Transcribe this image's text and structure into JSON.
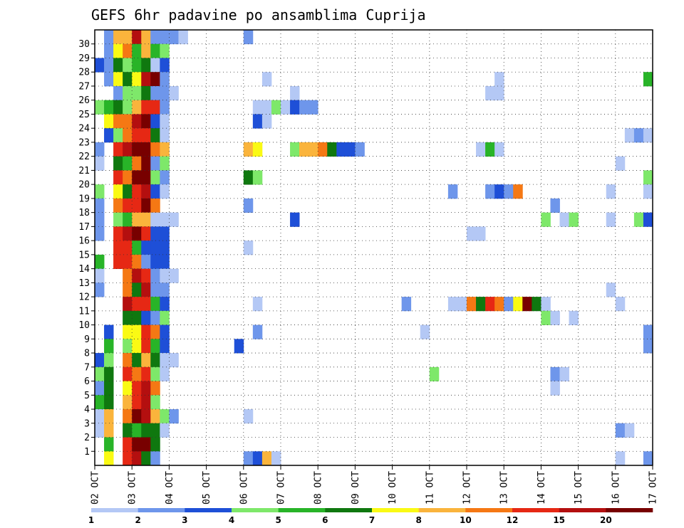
{
  "chart_data": {
    "type": "heatmap",
    "title": "GEFS 6hr padavine po ansamblima Cuprija",
    "y_ticks": [
      "1",
      "2",
      "3",
      "4",
      "5",
      "6",
      "7",
      "8",
      "9",
      "10",
      "11",
      "12",
      "13",
      "14",
      "15",
      "16",
      "17",
      "18",
      "19",
      "20",
      "21",
      "22",
      "23",
      "24",
      "25",
      "26",
      "27",
      "28",
      "29",
      "30"
    ],
    "x_ticks": [
      "02 OCT",
      "03 OCT",
      "04 OCT",
      "05 OCT",
      "06 OCT",
      "07 OCT",
      "08 OCT",
      "09 OCT",
      "10 OCT",
      "11 OCT",
      "12 OCT",
      "13 OCT",
      "14 OCT",
      "15 OCT",
      "16 OCT",
      "17 OCT"
    ],
    "grid": "dotted",
    "legend": {
      "placement": "bottom",
      "labels": [
        "1",
        "2",
        "3",
        "4",
        "5",
        "6",
        "7",
        "8",
        "10",
        "12",
        "15",
        "20"
      ],
      "colors": [
        "#b4c8f5",
        "#6e96eb",
        "#1e4fd7",
        "#7ee86a",
        "#28b428",
        "#0f780f",
        "#fafa14",
        "#fab43c",
        "#f57814",
        "#e62814",
        "#b40f0f",
        "#780000"
      ]
    },
    "x_steps_per_day": 4,
    "n_members": 31,
    "member_index_note": "rows ordered bottom (member 0) to top (member 30)",
    "level_thresholds_mm": [
      1,
      2,
      3,
      4,
      5,
      6,
      7,
      8,
      10,
      12,
      15,
      20
    ],
    "cells": [
      [
        30,
        1,
        2
      ],
      [
        30,
        2,
        8
      ],
      [
        30,
        3,
        8
      ],
      [
        30,
        4,
        11
      ],
      [
        30,
        5,
        8
      ],
      [
        30,
        6,
        2
      ],
      [
        30,
        7,
        2
      ],
      [
        30,
        8,
        2
      ],
      [
        30,
        9,
        1
      ],
      [
        30,
        16,
        2
      ],
      [
        29,
        1,
        2
      ],
      [
        29,
        2,
        7
      ],
      [
        29,
        3,
        9
      ],
      [
        29,
        4,
        5
      ],
      [
        29,
        5,
        8
      ],
      [
        29,
        6,
        5
      ],
      [
        29,
        7,
        4
      ],
      [
        28,
        0,
        3
      ],
      [
        28,
        1,
        2
      ],
      [
        28,
        2,
        6
      ],
      [
        28,
        3,
        4
      ],
      [
        28,
        4,
        5
      ],
      [
        28,
        5,
        6
      ],
      [
        28,
        6,
        1
      ],
      [
        28,
        7,
        3
      ],
      [
        27,
        1,
        2
      ],
      [
        27,
        2,
        7
      ],
      [
        27,
        3,
        6
      ],
      [
        27,
        4,
        7
      ],
      [
        27,
        5,
        11
      ],
      [
        27,
        6,
        12
      ],
      [
        27,
        7,
        2
      ],
      [
        27,
        18,
        1
      ],
      [
        27,
        43,
        1
      ],
      [
        27,
        59,
        5
      ],
      [
        26,
        2,
        2
      ],
      [
        26,
        3,
        4
      ],
      [
        26,
        4,
        4
      ],
      [
        26,
        5,
        6
      ],
      [
        26,
        6,
        2
      ],
      [
        26,
        7,
        2
      ],
      [
        26,
        8,
        1
      ],
      [
        26,
        21,
        1
      ],
      [
        26,
        42,
        1
      ],
      [
        26,
        43,
        1
      ],
      [
        25,
        0,
        4
      ],
      [
        25,
        1,
        5
      ],
      [
        25,
        2,
        6
      ],
      [
        25,
        3,
        4
      ],
      [
        25,
        4,
        8
      ],
      [
        25,
        5,
        10
      ],
      [
        25,
        6,
        10
      ],
      [
        25,
        7,
        2
      ],
      [
        25,
        17,
        1
      ],
      [
        25,
        18,
        1
      ],
      [
        25,
        19,
        4
      ],
      [
        25,
        20,
        1
      ],
      [
        25,
        21,
        3
      ],
      [
        25,
        22,
        2
      ],
      [
        25,
        23,
        2
      ],
      [
        24,
        1,
        7
      ],
      [
        24,
        2,
        9
      ],
      [
        24,
        3,
        9
      ],
      [
        24,
        4,
        11
      ],
      [
        24,
        5,
        12
      ],
      [
        24,
        6,
        3
      ],
      [
        24,
        7,
        1
      ],
      [
        24,
        17,
        3
      ],
      [
        24,
        18,
        1
      ],
      [
        23,
        1,
        3
      ],
      [
        23,
        2,
        4
      ],
      [
        23,
        3,
        9
      ],
      [
        23,
        4,
        10
      ],
      [
        23,
        5,
        10
      ],
      [
        23,
        6,
        6
      ],
      [
        23,
        7,
        1
      ],
      [
        23,
        57,
        1
      ],
      [
        23,
        58,
        2
      ],
      [
        23,
        59,
        1
      ],
      [
        22,
        0,
        2
      ],
      [
        22,
        2,
        10
      ],
      [
        22,
        3,
        11
      ],
      [
        22,
        4,
        12
      ],
      [
        22,
        5,
        12
      ],
      [
        22,
        6,
        9
      ],
      [
        22,
        7,
        8
      ],
      [
        22,
        16,
        8
      ],
      [
        22,
        17,
        7
      ],
      [
        22,
        21,
        4
      ],
      [
        22,
        22,
        8
      ],
      [
        22,
        23,
        8
      ],
      [
        22,
        24,
        9
      ],
      [
        22,
        25,
        6
      ],
      [
        22,
        26,
        3
      ],
      [
        22,
        27,
        3
      ],
      [
        22,
        28,
        2
      ],
      [
        22,
        41,
        1
      ],
      [
        22,
        42,
        5
      ],
      [
        22,
        43,
        1
      ],
      [
        21,
        0,
        1
      ],
      [
        21,
        2,
        6
      ],
      [
        21,
        3,
        5
      ],
      [
        21,
        4,
        9
      ],
      [
        21,
        5,
        12
      ],
      [
        21,
        6,
        2
      ],
      [
        21,
        7,
        4
      ],
      [
        21,
        56,
        1
      ],
      [
        20,
        2,
        10
      ],
      [
        20,
        3,
        9
      ],
      [
        20,
        4,
        12
      ],
      [
        20,
        5,
        12
      ],
      [
        20,
        6,
        4
      ],
      [
        20,
        7,
        2
      ],
      [
        20,
        16,
        6
      ],
      [
        20,
        17,
        4
      ],
      [
        20,
        59,
        4
      ],
      [
        19,
        0,
        4
      ],
      [
        19,
        2,
        7
      ],
      [
        19,
        3,
        6
      ],
      [
        19,
        4,
        10
      ],
      [
        19,
        5,
        11
      ],
      [
        19,
        6,
        3
      ],
      [
        19,
        7,
        1
      ],
      [
        19,
        38,
        2
      ],
      [
        19,
        42,
        2
      ],
      [
        19,
        43,
        3
      ],
      [
        19,
        44,
        2
      ],
      [
        19,
        45,
        9
      ],
      [
        19,
        55,
        1
      ],
      [
        19,
        59,
        1
      ],
      [
        18,
        0,
        2
      ],
      [
        18,
        2,
        9
      ],
      [
        18,
        3,
        10
      ],
      [
        18,
        4,
        10
      ],
      [
        18,
        5,
        12
      ],
      [
        18,
        6,
        9
      ],
      [
        18,
        16,
        2
      ],
      [
        18,
        49,
        2
      ],
      [
        17,
        0,
        2
      ],
      [
        17,
        2,
        4
      ],
      [
        17,
        3,
        5
      ],
      [
        17,
        4,
        8
      ],
      [
        17,
        5,
        8
      ],
      [
        17,
        6,
        1
      ],
      [
        17,
        7,
        1
      ],
      [
        17,
        8,
        1
      ],
      [
        17,
        21,
        3
      ],
      [
        17,
        48,
        4
      ],
      [
        17,
        50,
        1
      ],
      [
        17,
        51,
        4
      ],
      [
        17,
        55,
        1
      ],
      [
        17,
        58,
        4
      ],
      [
        17,
        59,
        3
      ],
      [
        16,
        0,
        2
      ],
      [
        16,
        2,
        10
      ],
      [
        16,
        3,
        11
      ],
      [
        16,
        4,
        12
      ],
      [
        16,
        5,
        10
      ],
      [
        16,
        6,
        3
      ],
      [
        16,
        7,
        3
      ],
      [
        16,
        40,
        1
      ],
      [
        16,
        41,
        1
      ],
      [
        15,
        2,
        10
      ],
      [
        15,
        3,
        10
      ],
      [
        15,
        4,
        5
      ],
      [
        15,
        5,
        3
      ],
      [
        15,
        6,
        3
      ],
      [
        15,
        7,
        3
      ],
      [
        15,
        16,
        1
      ],
      [
        14,
        0,
        5
      ],
      [
        14,
        2,
        10
      ],
      [
        14,
        3,
        10
      ],
      [
        14,
        4,
        9
      ],
      [
        14,
        5,
        2
      ],
      [
        14,
        6,
        3
      ],
      [
        14,
        7,
        3
      ],
      [
        13,
        0,
        1
      ],
      [
        13,
        3,
        9
      ],
      [
        13,
        4,
        11
      ],
      [
        13,
        5,
        10
      ],
      [
        13,
        6,
        2
      ],
      [
        13,
        7,
        1
      ],
      [
        13,
        8,
        1
      ],
      [
        12,
        0,
        2
      ],
      [
        12,
        3,
        9
      ],
      [
        12,
        4,
        6
      ],
      [
        12,
        5,
        11
      ],
      [
        12,
        6,
        2
      ],
      [
        12,
        7,
        2
      ],
      [
        12,
        55,
        1
      ],
      [
        11,
        3,
        11
      ],
      [
        11,
        4,
        10
      ],
      [
        11,
        5,
        10
      ],
      [
        11,
        6,
        5
      ],
      [
        11,
        7,
        3
      ],
      [
        11,
        17,
        1
      ],
      [
        11,
        33,
        2
      ],
      [
        11,
        38,
        1
      ],
      [
        11,
        39,
        1
      ],
      [
        11,
        40,
        9
      ],
      [
        11,
        41,
        6
      ],
      [
        11,
        42,
        10
      ],
      [
        11,
        43,
        9
      ],
      [
        11,
        44,
        2
      ],
      [
        11,
        45,
        7
      ],
      [
        11,
        46,
        12
      ],
      [
        11,
        47,
        6
      ],
      [
        11,
        48,
        1
      ],
      [
        11,
        56,
        1
      ],
      [
        10,
        3,
        6
      ],
      [
        10,
        4,
        6
      ],
      [
        10,
        5,
        3
      ],
      [
        10,
        6,
        2
      ],
      [
        10,
        7,
        4
      ],
      [
        10,
        48,
        4
      ],
      [
        10,
        49,
        1
      ],
      [
        10,
        51,
        1
      ],
      [
        9,
        1,
        3
      ],
      [
        9,
        3,
        7
      ],
      [
        9,
        4,
        7
      ],
      [
        9,
        5,
        10
      ],
      [
        9,
        6,
        9
      ],
      [
        9,
        7,
        3
      ],
      [
        9,
        17,
        2
      ],
      [
        9,
        35,
        1
      ],
      [
        9,
        59,
        2
      ],
      [
        8,
        1,
        5
      ],
      [
        8,
        3,
        4
      ],
      [
        8,
        4,
        7
      ],
      [
        8,
        5,
        10
      ],
      [
        8,
        6,
        5
      ],
      [
        8,
        7,
        3
      ],
      [
        8,
        15,
        3
      ],
      [
        8,
        59,
        2
      ],
      [
        7,
        0,
        3
      ],
      [
        7,
        1,
        4
      ],
      [
        7,
        3,
        9
      ],
      [
        7,
        4,
        6
      ],
      [
        7,
        5,
        8
      ],
      [
        7,
        6,
        6
      ],
      [
        7,
        7,
        1
      ],
      [
        7,
        8,
        1
      ],
      [
        6,
        0,
        4
      ],
      [
        6,
        1,
        6
      ],
      [
        6,
        3,
        10
      ],
      [
        6,
        4,
        9
      ],
      [
        6,
        5,
        10
      ],
      [
        6,
        6,
        4
      ],
      [
        6,
        7,
        1
      ],
      [
        6,
        36,
        4
      ],
      [
        6,
        49,
        2
      ],
      [
        6,
        50,
        1
      ],
      [
        5,
        0,
        2
      ],
      [
        5,
        1,
        6
      ],
      [
        5,
        3,
        7
      ],
      [
        5,
        4,
        10
      ],
      [
        5,
        5,
        11
      ],
      [
        5,
        6,
        9
      ],
      [
        5,
        49,
        1
      ],
      [
        4,
        0,
        5
      ],
      [
        4,
        1,
        6
      ],
      [
        4,
        3,
        8
      ],
      [
        4,
        4,
        10
      ],
      [
        4,
        5,
        11
      ],
      [
        4,
        6,
        4
      ],
      [
        3,
        0,
        1
      ],
      [
        3,
        1,
        8
      ],
      [
        3,
        3,
        9
      ],
      [
        3,
        4,
        12
      ],
      [
        3,
        5,
        11
      ],
      [
        3,
        6,
        8
      ],
      [
        3,
        7,
        4
      ],
      [
        3,
        8,
        2
      ],
      [
        3,
        16,
        1
      ],
      [
        2,
        0,
        1
      ],
      [
        2,
        1,
        8
      ],
      [
        2,
        3,
        6
      ],
      [
        2,
        4,
        5
      ],
      [
        2,
        5,
        6
      ],
      [
        2,
        6,
        6
      ],
      [
        2,
        7,
        1
      ],
      [
        2,
        56,
        2
      ],
      [
        2,
        57,
        1
      ],
      [
        1,
        1,
        5
      ],
      [
        1,
        3,
        10
      ],
      [
        1,
        4,
        12
      ],
      [
        1,
        5,
        12
      ],
      [
        1,
        6,
        6
      ],
      [
        0,
        1,
        7
      ],
      [
        0,
        3,
        10
      ],
      [
        0,
        4,
        11
      ],
      [
        0,
        5,
        6
      ],
      [
        0,
        6,
        2
      ],
      [
        0,
        16,
        2
      ],
      [
        0,
        17,
        3
      ],
      [
        0,
        18,
        8
      ],
      [
        0,
        19,
        1
      ],
      [
        0,
        56,
        1
      ],
      [
        0,
        59,
        2
      ]
    ]
  }
}
